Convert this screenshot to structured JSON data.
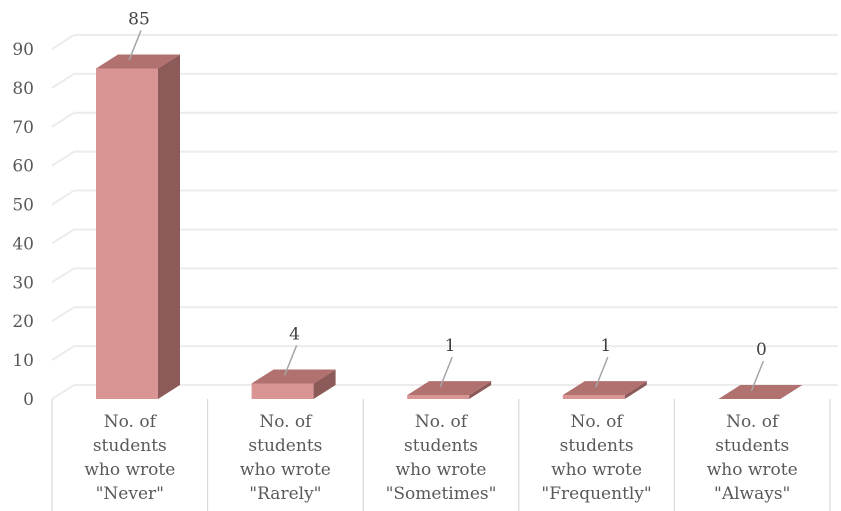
{
  "chart_data": {
    "type": "bar",
    "style": "3d-column",
    "categories": [
      [
        "No. of",
        "students",
        "who wrote",
        "\"Never\""
      ],
      [
        "No. of",
        "students",
        "who wrote",
        "\"Rarely\""
      ],
      [
        "No. of",
        "students",
        "who wrote",
        "\"Sometimes\""
      ],
      [
        "No. of",
        "students",
        "who wrote",
        "\"Frequently\""
      ],
      [
        "No. of",
        "students",
        "who wrote",
        "\"Always\""
      ]
    ],
    "values": [
      85,
      4,
      1,
      1,
      0
    ],
    "data_labels": [
      "85",
      "4",
      "1",
      "1",
      "0"
    ],
    "y_ticks": [
      "0",
      "10",
      "20",
      "30",
      "40",
      "50",
      "60",
      "70",
      "80",
      "90"
    ],
    "ylim": [
      0,
      90
    ],
    "grid": true,
    "legend": "none",
    "colors": {
      "bar_front": "#d99594",
      "bar_side": "#8c5a59",
      "bar_top": "#b0716f",
      "gridline": "#ececec",
      "leader": "#a6a6a6"
    }
  }
}
